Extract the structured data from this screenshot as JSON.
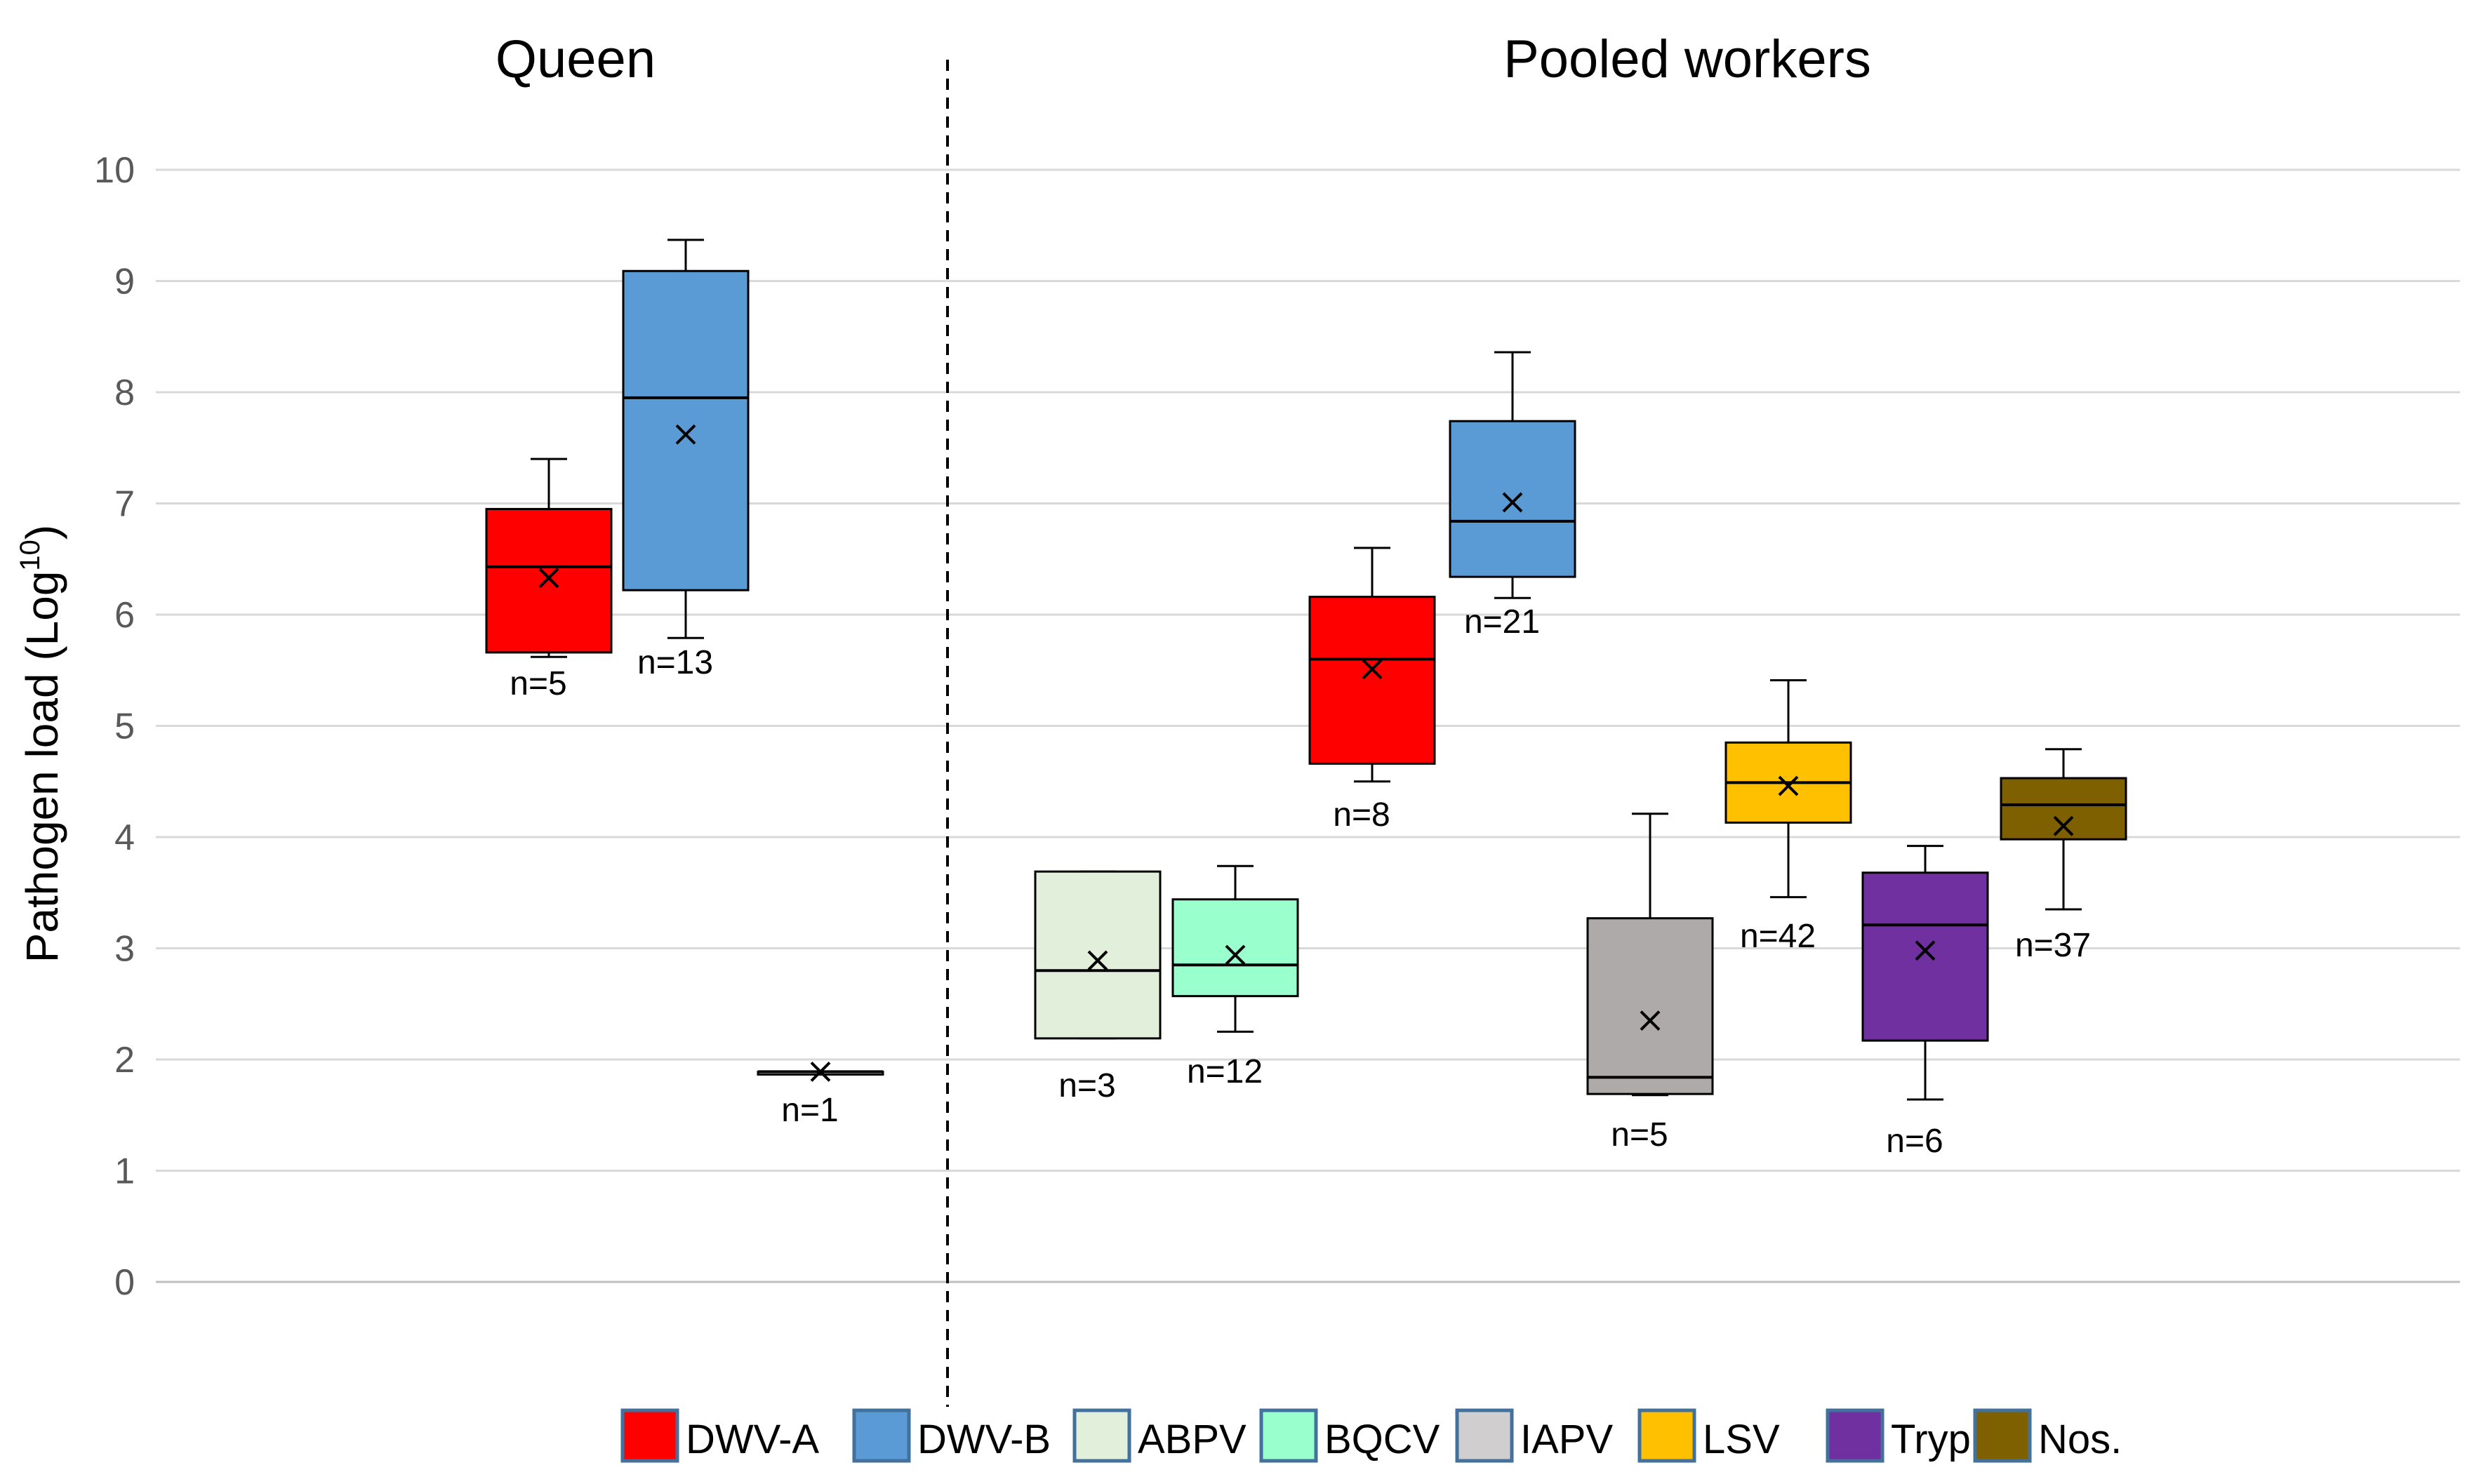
{
  "chart_data": {
    "type": "box",
    "ylabel": "Pathogen load (Log",
    "ylabel_sup": "10",
    "ylabel_close": ")",
    "ylim": [
      0,
      10
    ],
    "yticks": [
      "0",
      "1",
      "2",
      "3",
      "4",
      "5",
      "6",
      "7",
      "8",
      "9",
      "10"
    ],
    "grid": true,
    "legend_position": "bottom",
    "panels": [
      {
        "label": "Queen"
      },
      {
        "label": "Pooled workers"
      }
    ],
    "legend": [
      {
        "name": "DWV-A",
        "color": "#ff0000"
      },
      {
        "name": "DWV-B",
        "color": "#5b9bd5"
      },
      {
        "name": "ABPV",
        "color": "#e2efda"
      },
      {
        "name": "BQCV",
        "color": "#99ffcc"
      },
      {
        "name": "IAPV",
        "color": "#d0cece"
      },
      {
        "name": "LSV",
        "color": "#ffc000"
      },
      {
        "name": "Tryp.",
        "color": "#7030a0"
      },
      {
        "name": "Nos.",
        "color": "#7f6000"
      }
    ],
    "boxes": [
      {
        "group": "Queen",
        "series": "DWV-A",
        "color": "#ff0000",
        "min": 5.62,
        "q1": 5.66,
        "median": 6.43,
        "q3": 6.95,
        "max": 7.4,
        "mean": 6.33,
        "n_label": "n=5"
      },
      {
        "group": "Queen",
        "series": "DWV-B",
        "color": "#5b9bd5",
        "min": 5.79,
        "q1": 6.22,
        "median": 7.95,
        "q3": 9.09,
        "max": 9.37,
        "mean": 7.62,
        "n_label": "n=13"
      },
      {
        "group": "Queen",
        "series": "BQCV",
        "color": "#99ffcc",
        "min": 1.89,
        "q1": 1.89,
        "median": 1.89,
        "q3": 1.89,
        "max": 1.89,
        "mean": 1.89,
        "n_label": "n=1"
      },
      {
        "group": "Pooled workers",
        "series": "ABPV",
        "color": "#e2efda",
        "min": 2.19,
        "q1": 2.19,
        "median": 2.8,
        "q3": 3.69,
        "max": 3.69,
        "mean": 2.89,
        "n_label": "n=3"
      },
      {
        "group": "Pooled workers",
        "series": "BQCV",
        "color": "#99ffcc",
        "min": 2.25,
        "q1": 2.57,
        "median": 2.85,
        "q3": 3.44,
        "max": 3.74,
        "mean": 2.94,
        "n_label": "n=12"
      },
      {
        "group": "Pooled workers",
        "series": "DWV-A",
        "color": "#ff0000",
        "min": 4.5,
        "q1": 4.66,
        "median": 5.6,
        "q3": 6.16,
        "max": 6.6,
        "mean": 5.51,
        "n_label": "n=8"
      },
      {
        "group": "Pooled workers",
        "series": "DWV-B",
        "color": "#5b9bd5",
        "min": 6.15,
        "q1": 6.34,
        "median": 6.84,
        "q3": 7.74,
        "max": 8.36,
        "mean": 7.01,
        "n_label": "n=21"
      },
      {
        "group": "Pooled workers",
        "series": "IAPV",
        "color": "#aeaaaa",
        "min": 1.68,
        "q1": 1.69,
        "median": 1.84,
        "q3": 3.27,
        "max": 4.21,
        "mean": 2.35,
        "n_label": "n=5"
      },
      {
        "group": "Pooled workers",
        "series": "LSV",
        "color": "#ffc000",
        "min": 3.46,
        "q1": 4.13,
        "median": 4.49,
        "q3": 4.85,
        "max": 5.41,
        "mean": 4.46,
        "n_label": "n=42"
      },
      {
        "group": "Pooled workers",
        "series": "Tryp.",
        "color": "#7030a0",
        "min": 1.64,
        "q1": 2.17,
        "median": 3.21,
        "q3": 3.68,
        "max": 3.92,
        "mean": 2.98,
        "n_label": "n=6"
      },
      {
        "group": "Pooled workers",
        "series": "Nos.",
        "color": "#7f6000",
        "min": 3.35,
        "q1": 3.98,
        "median": 4.29,
        "q3": 4.53,
        "max": 4.79,
        "mean": 4.1,
        "n_label": "n=37"
      }
    ]
  }
}
